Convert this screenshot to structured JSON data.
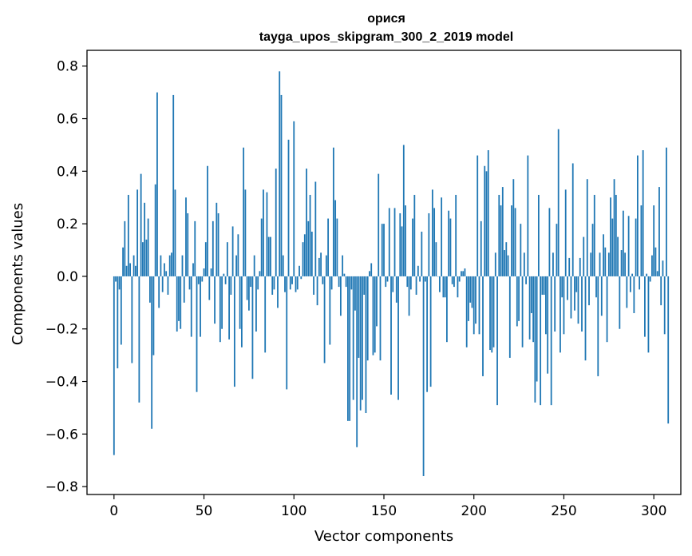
{
  "chart_data": {
    "type": "bar",
    "title": "орися",
    "subtitle": "tayga_upos_skipgram_300_2_2019 model",
    "xlabel": "Vector components",
    "ylabel": "Components values",
    "xlim": [
      -15,
      315
    ],
    "ylim": [
      -0.83,
      0.86
    ],
    "xticks": [
      0,
      50,
      100,
      150,
      200,
      250,
      300
    ],
    "yticks": [
      -0.8,
      -0.6,
      -0.4,
      -0.2,
      0.0,
      0.2,
      0.4,
      0.6,
      0.8
    ],
    "ytick_labels": [
      "−0.8",
      "−0.6",
      "−0.4",
      "−0.2",
      "0.0",
      "0.2",
      "0.4",
      "0.6",
      "0.8"
    ],
    "xtick_labels": [
      "0",
      "50",
      "100",
      "150",
      "200",
      "250",
      "300"
    ],
    "bar_color": "#1f77b4",
    "values": [
      -0.68,
      -0.02,
      -0.35,
      -0.05,
      -0.26,
      0.11,
      0.21,
      0.04,
      0.31,
      0.05,
      -0.33,
      0.08,
      0.04,
      0.33,
      -0.48,
      0.39,
      0.13,
      0.28,
      0.14,
      0.22,
      -0.1,
      -0.58,
      -0.3,
      0.35,
      0.7,
      -0.12,
      0.08,
      -0.06,
      0.05,
      0.02,
      -0.07,
      0.08,
      0.09,
      0.69,
      0.33,
      -0.21,
      -0.17,
      -0.2,
      0.08,
      -0.1,
      0.3,
      0.24,
      -0.05,
      -0.23,
      0.05,
      0.21,
      -0.44,
      -0.03,
      -0.23,
      -0.02,
      0.03,
      0.13,
      0.42,
      -0.09,
      0.03,
      0.21,
      -0.18,
      0.28,
      0.24,
      -0.25,
      -0.2,
      0.01,
      -0.03,
      0.13,
      -0.24,
      -0.07,
      0.19,
      -0.42,
      0.08,
      0.16,
      -0.2,
      -0.27,
      0.49,
      0.33,
      -0.09,
      -0.13,
      -0.04,
      -0.39,
      0.08,
      -0.21,
      -0.05,
      0.02,
      0.22,
      0.33,
      -0.29,
      0.32,
      0.15,
      0.15,
      -0.07,
      -0.05,
      0.41,
      -0.12,
      0.78,
      0.69,
      0.08,
      -0.06,
      -0.43,
      0.52,
      -0.05,
      -0.03,
      0.59,
      -0.06,
      -0.05,
      0.04,
      -0.01,
      0.13,
      0.16,
      0.41,
      0.21,
      0.31,
      0.17,
      -0.07,
      0.36,
      -0.11,
      0.07,
      0.09,
      -0.03,
      -0.33,
      0.08,
      0.22,
      -0.26,
      -0.05,
      0.49,
      0.29,
      0.22,
      -0.04,
      -0.15,
      0.08,
      0.01,
      -0.04,
      -0.55,
      -0.55,
      -0.05,
      -0.47,
      -0.13,
      -0.65,
      -0.31,
      -0.51,
      -0.47,
      -0.07,
      -0.52,
      -0.32,
      0.02,
      0.05,
      -0.3,
      -0.29,
      -0.19,
      0.39,
      -0.32,
      0.2,
      0.2,
      -0.04,
      -0.02,
      0.26,
      -0.45,
      -0.06,
      0.26,
      -0.1,
      -0.47,
      0.24,
      0.19,
      0.5,
      0.27,
      -0.04,
      -0.15,
      -0.05,
      0.22,
      0.31,
      -0.07,
      0.04,
      -0.02,
      0.17,
      -0.76,
      -0.02,
      -0.44,
      0.24,
      -0.42,
      0.33,
      0.26,
      0.13,
      0.0,
      -0.06,
      0.3,
      -0.08,
      -0.08,
      -0.25,
      0.25,
      0.22,
      -0.03,
      -0.04,
      0.31,
      -0.08,
      -0.02,
      0.02,
      0.02,
      0.03,
      -0.27,
      -0.17,
      -0.1,
      -0.12,
      -0.22,
      -0.18,
      0.46,
      -0.22,
      0.21,
      -0.38,
      0.42,
      0.4,
      0.48,
      -0.28,
      -0.29,
      -0.27,
      0.09,
      -0.49,
      0.31,
      0.27,
      0.34,
      0.1,
      0.13,
      0.08,
      -0.31,
      0.27,
      0.37,
      0.26,
      -0.19,
      -0.17,
      0.2,
      -0.27,
      0.09,
      -0.03,
      0.46,
      -0.24,
      -0.14,
      -0.25,
      -0.48,
      -0.4,
      0.31,
      -0.49,
      -0.07,
      -0.07,
      -0.22,
      -0.37,
      0.26,
      -0.49,
      0.09,
      -0.21,
      0.2,
      0.56,
      -0.29,
      -0.08,
      -0.22,
      0.33,
      -0.09,
      0.07,
      -0.16,
      0.43,
      -0.13,
      -0.06,
      -0.18,
      0.07,
      -0.21,
      0.15,
      -0.32,
      0.37,
      -0.11,
      0.09,
      0.2,
      0.31,
      -0.08,
      -0.38,
      0.09,
      -0.15,
      0.16,
      0.11,
      -0.25,
      0.09,
      0.3,
      0.22,
      0.37,
      0.31,
      0.15,
      -0.2,
      0.1,
      0.25,
      0.09,
      -0.12,
      0.23,
      -0.06,
      0.01,
      -0.14,
      0.22,
      0.46,
      -0.05,
      0.27,
      0.48,
      -0.23,
      0.01,
      -0.29,
      -0.02,
      0.08,
      0.27,
      0.11,
      0.02,
      0.34,
      -0.11,
      0.06,
      -0.22,
      0.49,
      -0.56
    ]
  }
}
